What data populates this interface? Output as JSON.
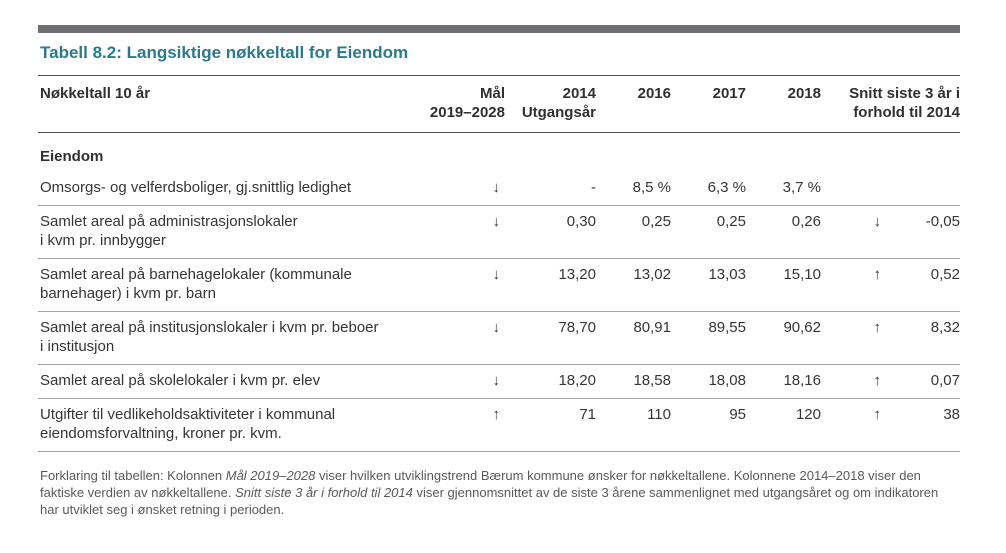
{
  "page": {
    "title": "Tabell 8.2: Langsiktige nøkkeltall for Eiendom"
  },
  "colors": {
    "title_teal": "#2a7a8c",
    "top_bar_gray": "#6e6e73",
    "header_line": "#4d4d4d",
    "row_line": "#a3a3a3",
    "body_text": "#353535",
    "footnote_gray": "#595959"
  },
  "table": {
    "headers": {
      "name": "Nøkkeltall 10 år",
      "goal": "Mål\n2019–2028",
      "y2014": "2014\nUtgangsår",
      "y2016": "2016",
      "y2017": "2017",
      "y2018": "2018",
      "snitt": "Snitt siste 3 år i\nforhold til 2014"
    },
    "section_label": "Eiendom",
    "rows": [
      {
        "name": "Omsorgs- og velferdsboliger, gj.snittlig ledighet",
        "goal_arrow": "↓",
        "v2014": "-",
        "v2016": "8,5 %",
        "v2017": "6,3 %",
        "v2018": "3,7 %",
        "snitt_arrow": "",
        "snitt_value": ""
      },
      {
        "name": "Samlet areal på administrasjonslokaler\ni kvm pr. innbygger",
        "goal_arrow": "↓",
        "v2014": "0,30",
        "v2016": "0,25",
        "v2017": "0,25",
        "v2018": "0,26",
        "snitt_arrow": "↓",
        "snitt_value": "-0,05"
      },
      {
        "name": "Samlet areal på barnehagelokaler (kommunale\nbarnehager) i kvm pr. barn",
        "goal_arrow": "↓",
        "v2014": "13,20",
        "v2016": "13,02",
        "v2017": "13,03",
        "v2018": "15,10",
        "snitt_arrow": "↑",
        "snitt_value": "0,52"
      },
      {
        "name": "Samlet areal på institusjonslokaler i kvm pr. beboer\ni institusjon",
        "goal_arrow": "↓",
        "v2014": "78,70",
        "v2016": "80,91",
        "v2017": "89,55",
        "v2018": "90,62",
        "snitt_arrow": "↑",
        "snitt_value": "8,32"
      },
      {
        "name": "Samlet areal på skolelokaler i kvm pr. elev",
        "goal_arrow": "↓",
        "v2014": "18,20",
        "v2016": "18,58",
        "v2017": "18,08",
        "v2018": "18,16",
        "snitt_arrow": "↑",
        "snitt_value": "0,07"
      },
      {
        "name": "Utgifter til vedlikeholdsaktiviteter i kommunal\neiendomsforvaltning, kroner pr. kvm.",
        "goal_arrow": "↑",
        "v2014": "71",
        "v2016": "110",
        "v2017": "95",
        "v2018": "120",
        "snitt_arrow": "↑",
        "snitt_value": "38"
      }
    ]
  },
  "footnote": {
    "parts": [
      {
        "text": "Forklaring til tabellen: Kolonnen ",
        "italic": false
      },
      {
        "text": "Mål 2019–2028",
        "italic": true
      },
      {
        "text": " viser hvilken utviklingstrend Bærum kommune ønsker for nøkkeltallene. Kolonnene 2014–2018 viser den faktiske verdien av nøkkeltallene. ",
        "italic": false
      },
      {
        "text": "Snitt siste 3 år i forhold til 2014",
        "italic": true
      },
      {
        "text": " viser gjennomsnittet av de siste 3 årene sammenlignet med utgangsåret og om indikatoren har utviklet seg i ønsket retning i perioden.",
        "italic": false
      }
    ]
  }
}
